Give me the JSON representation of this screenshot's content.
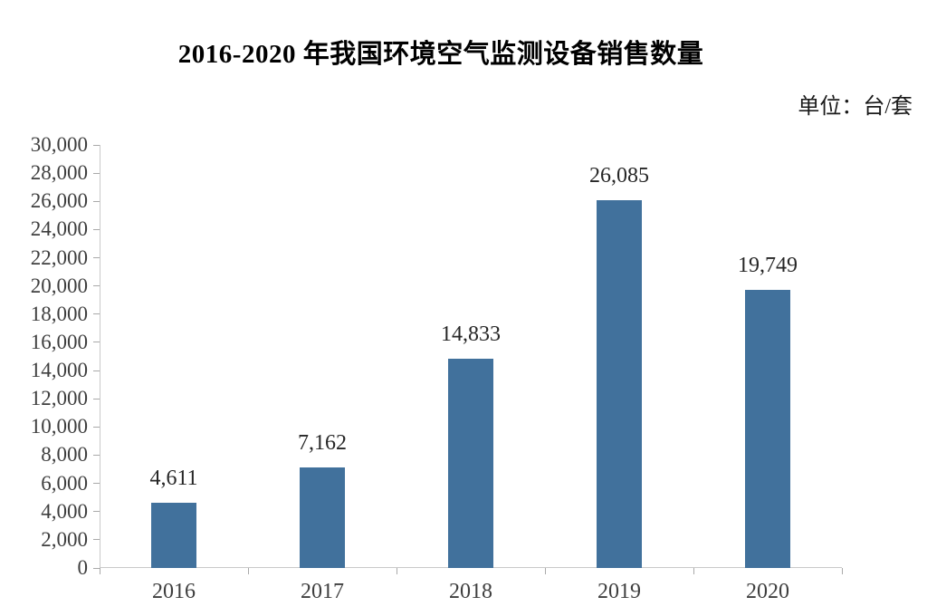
{
  "chart_data": {
    "type": "bar",
    "title": "2016-2020 年我国环境空气监测设备销售数量",
    "unit_label": "单位：台/套",
    "categories": [
      "2016",
      "2017",
      "2018",
      "2019",
      "2020"
    ],
    "values": [
      4611,
      7162,
      14833,
      26085,
      19749
    ],
    "value_labels": [
      "4,611",
      "7,162",
      "14,833",
      "26,085",
      "19,749"
    ],
    "xlabel": "",
    "ylabel": "",
    "ylim": [
      0,
      30000
    ],
    "y_tick_step": 2000,
    "y_tick_labels": [
      "0",
      "2,000",
      "4,000",
      "6,000",
      "8,000",
      "10,000",
      "12,000",
      "14,000",
      "16,000",
      "18,000",
      "20,000",
      "22,000",
      "24,000",
      "26,000",
      "28,000",
      "30,000"
    ],
    "grid": false,
    "legend": "none",
    "colors": {
      "bar": "#41719C",
      "axis_line": "#C9C9C9",
      "tick_mark": "#A9A9A9",
      "tick_label": "#3E3E3E",
      "value_label": "#262626",
      "title": "#000000",
      "background": "#FFFFFF"
    }
  }
}
